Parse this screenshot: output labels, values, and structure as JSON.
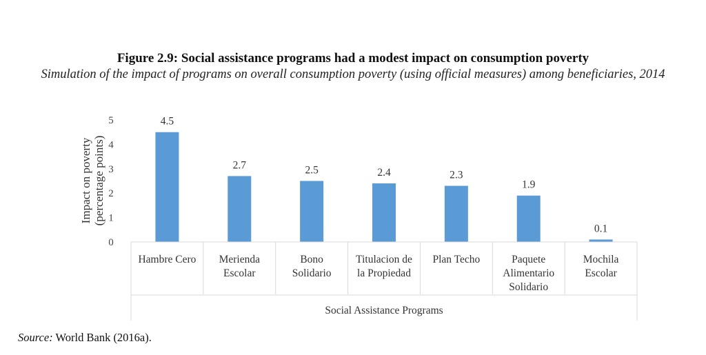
{
  "figure": {
    "title": "Figure 2.9: Social assistance programs had a modest impact on consumption poverty",
    "subtitle": "Simulation of the impact of programs on overall consumption poverty (using official measures) among beneficiaries, 2014"
  },
  "source": {
    "label": "Source:",
    "text": "World Bank (2016a)."
  },
  "chart_data": {
    "type": "bar",
    "categories": [
      [
        "Hambre Cero"
      ],
      [
        "Merienda",
        "Escolar"
      ],
      [
        "Bono",
        "Solidario"
      ],
      [
        "Titulacion de",
        "la Propiedad"
      ],
      [
        "Plan Techo"
      ],
      [
        "Paquete",
        "Alimentario",
        "Solidario"
      ],
      [
        "Mochila",
        "Escolar"
      ]
    ],
    "values": [
      4.5,
      2.7,
      2.5,
      2.4,
      2.3,
      1.9,
      0.1
    ],
    "data_labels": [
      "4.5",
      "2.7",
      "2.5",
      "2.4",
      "2.3",
      "1.9",
      "0.1"
    ],
    "ylabel_lines": [
      "Impact on poverty",
      "(percentage points)"
    ],
    "xlabel": "Social Assistance Programs",
    "ylim": [
      0,
      5
    ],
    "yticks": [
      0,
      1,
      2,
      3,
      4,
      5
    ],
    "grid": false,
    "legend": "none",
    "bar_color": "#5b9bd5",
    "axis_color": "#d9d9d9"
  }
}
